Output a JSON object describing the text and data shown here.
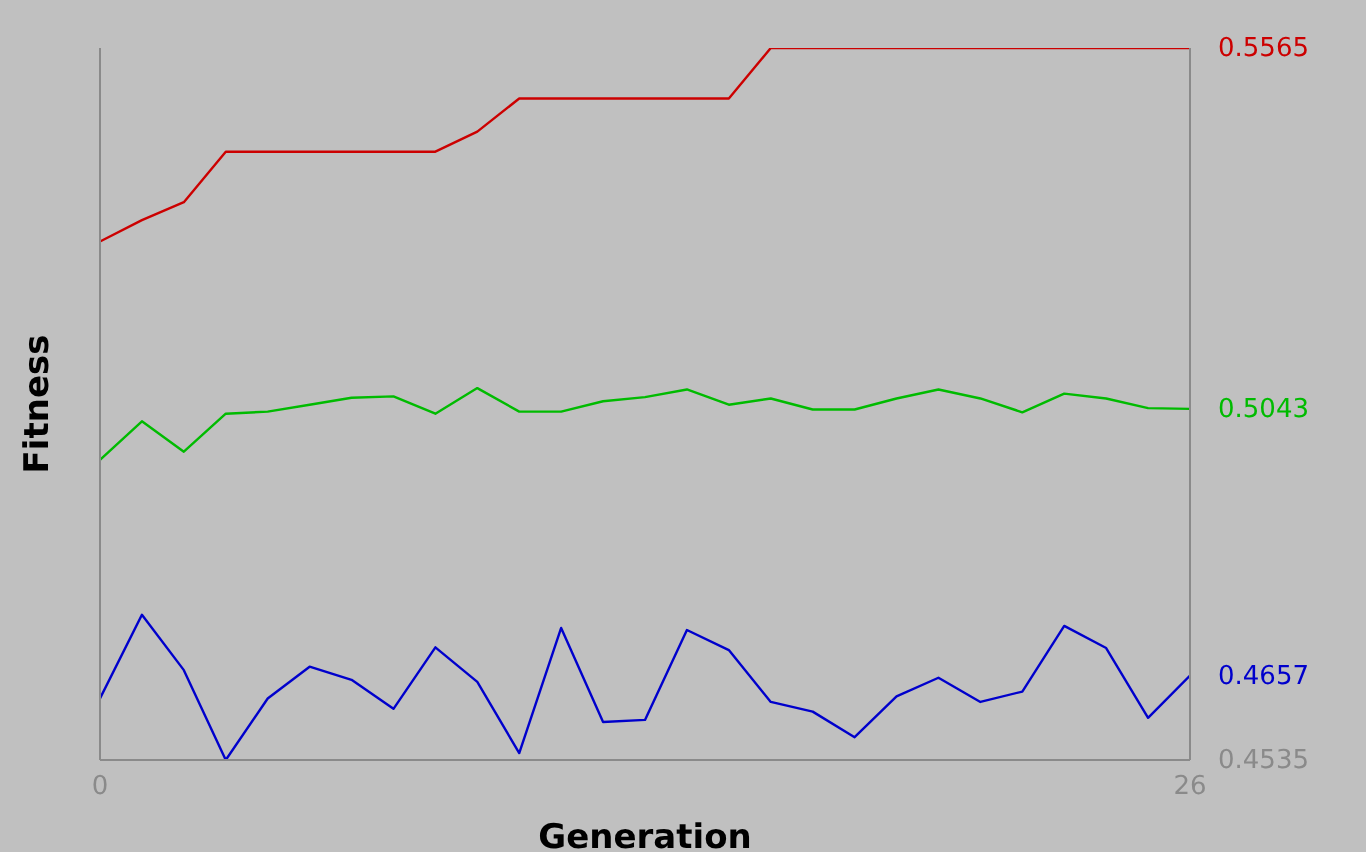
{
  "chart_data": {
    "type": "line",
    "xlabel": "Generation",
    "ylabel": "Fitness",
    "x": [
      0,
      1,
      2,
      3,
      4,
      5,
      6,
      7,
      8,
      9,
      10,
      11,
      12,
      13,
      14,
      15,
      16,
      17,
      18,
      19,
      20,
      21,
      22,
      23,
      24,
      25,
      26
    ],
    "xlim": [
      0,
      26
    ],
    "xticks": [
      0,
      26
    ],
    "ylim": [
      0.4535,
      0.5565
    ],
    "yticks": [
      0.4535,
      0.4657,
      0.5043,
      0.5565
    ],
    "grid": false,
    "legend": false,
    "marker": "none",
    "line_style": "solid",
    "series": [
      {
        "color": "#cc0000",
        "values": [
          0.5285,
          0.5316,
          0.5342,
          0.5415,
          0.5415,
          0.5415,
          0.5415,
          0.5415,
          0.5415,
          0.5444,
          0.5492,
          0.5492,
          0.5492,
          0.5492,
          0.5492,
          0.5492,
          0.5565,
          0.5565,
          0.5565,
          0.5565,
          0.5565,
          0.5565,
          0.5565,
          0.5565,
          0.5565,
          0.5565,
          0.5565
        ]
      },
      {
        "color": "#00bb00",
        "values": [
          0.4969,
          0.5025,
          0.4981,
          0.5036,
          0.5039,
          0.5049,
          0.5059,
          0.5061,
          0.5036,
          0.5073,
          0.5039,
          0.5039,
          0.5054,
          0.506,
          0.5071,
          0.5049,
          0.5058,
          0.5042,
          0.5042,
          0.5058,
          0.5071,
          0.5058,
          0.5038,
          0.5065,
          0.5058,
          0.5044,
          0.5043
        ]
      },
      {
        "color": "#0000cc",
        "values": [
          0.4624,
          0.4745,
          0.4665,
          0.4535,
          0.4624,
          0.467,
          0.4651,
          0.4609,
          0.4698,
          0.4648,
          0.4545,
          0.4726,
          0.459,
          0.4593,
          0.4723,
          0.4694,
          0.4619,
          0.4605,
          0.4568,
          0.4627,
          0.4654,
          0.4619,
          0.4634,
          0.4729,
          0.4697,
          0.4596,
          0.4657
        ]
      }
    ]
  }
}
